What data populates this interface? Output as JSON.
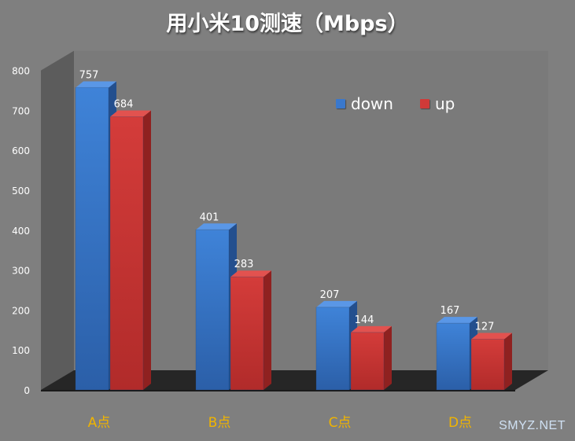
{
  "chart_data": {
    "type": "bar",
    "title": "用小米10测速（Mbps）",
    "categories": [
      "A点",
      "B点",
      "C点",
      "D点"
    ],
    "series": [
      {
        "name": "down",
        "values": [
          757,
          401,
          207,
          167
        ],
        "color": "#3a78cc"
      },
      {
        "name": "up",
        "values": [
          684,
          283,
          144,
          127
        ],
        "color": "#d03a38"
      }
    ],
    "ylim": [
      0,
      800
    ],
    "yticks": [
      0,
      100,
      200,
      300,
      400,
      500,
      600,
      700,
      800
    ],
    "grid": false,
    "legend_position": "top-right",
    "category_label_color": "#f0b400"
  },
  "watermark": "SMYZ.NET"
}
